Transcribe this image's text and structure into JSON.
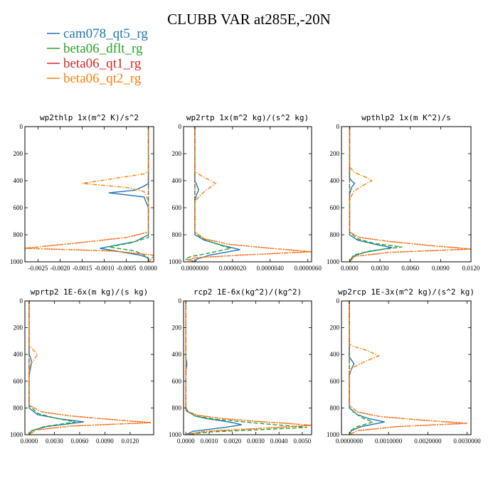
{
  "title": "CLUBB VAR at285E,-20N",
  "colors": {
    "cam078_qt5_rg": "#1f77b4",
    "beta06_dflt_rg": "#2ca02c",
    "beta06_qt1_rg": "#d62728",
    "beta06_qt2_rg": "#ff7f0e"
  },
  "legend": [
    {
      "name": "cam078_qt5_rg",
      "color": "#1f77b4",
      "style": "solid"
    },
    {
      "name": "beta06_dflt_rg",
      "color": "#2ca02c",
      "style": "dashed"
    },
    {
      "name": "beta06_qt1_rg",
      "color": "#d62728",
      "style": "dotted"
    },
    {
      "name": "beta06_qt2_rg",
      "color": "#ff7f0e",
      "style": "dashdot"
    }
  ],
  "chart_data": [
    {
      "type": "line",
      "title": "wp2thlp  1x(m^2 K)/s^2",
      "xlim": [
        -0.0028,
        0.00012
      ],
      "ylim": [
        1000,
        0
      ],
      "xticks": [
        -0.0025,
        -0.002,
        -0.0015,
        -0.001,
        -0.0005,
        0.0
      ],
      "xtick_labels": [
        "-0.0025",
        "-0.0020",
        "-0.0015",
        "-0.0010",
        "-0.0005",
        "0.0000"
      ],
      "yticks": [
        0,
        200,
        400,
        600,
        800,
        1000
      ],
      "series": [
        {
          "name": "cam078_qt5_rg",
          "x": [
            0,
            0,
            0,
            0,
            -0.0001,
            -0.0003,
            -0.0009,
            -0.0001,
            0,
            0,
            -0.0003,
            -0.0011,
            -0.0002,
            0,
            0,
            0
          ],
          "y": [
            0,
            200,
            350,
            420,
            440,
            470,
            490,
            520,
            600,
            800,
            850,
            900,
            950,
            970,
            990,
            1000
          ]
        },
        {
          "name": "beta06_dflt_rg",
          "x": [
            0,
            0,
            0,
            0,
            0,
            -0.0004,
            -0.0009,
            -0.0003,
            -0.0001,
            0,
            0
          ],
          "y": [
            0,
            300,
            600,
            780,
            820,
            860,
            890,
            920,
            950,
            980,
            1000
          ]
        },
        {
          "name": "beta06_qt1_rg",
          "x": [
            0,
            0,
            0,
            0,
            -0.0005,
            -0.0016,
            -0.0028,
            -0.0008,
            0.0001,
            0.00012,
            0
          ],
          "y": [
            0,
            300,
            600,
            780,
            820,
            860,
            900,
            920,
            950,
            960,
            1000
          ]
        },
        {
          "name": "beta06_qt2_rg",
          "x": [
            0,
            0,
            -0.0001,
            -0.0005,
            -0.0015,
            -0.0005,
            -0.0001,
            0,
            0,
            -0.0005,
            -0.0016,
            -0.0028,
            -0.0008,
            0.0001,
            0.00012,
            0
          ],
          "y": [
            0,
            330,
            350,
            370,
            420,
            450,
            480,
            550,
            780,
            820,
            860,
            900,
            920,
            950,
            960,
            1000
          ]
        }
      ]
    },
    {
      "type": "line",
      "title": "wp2rtp  1x(m^2 kg)/(s^2 kg)",
      "xlim": [
        -6e-07,
        6.2e-06
      ],
      "ylim": [
        1000,
        0
      ],
      "xticks": [
        0,
        2e-06,
        4e-06,
        6e-06
      ],
      "xtick_labels": [
        "0.0000000",
        "0.0000020",
        "0.0000040",
        "0.0000060"
      ],
      "yticks": [
        0,
        200,
        400,
        600,
        800,
        1000
      ],
      "series": [
        {
          "name": "cam078_qt5_rg",
          "x": [
            0,
            0,
            1e-07,
            2e-07,
            1e-07,
            0,
            0,
            5e-07,
            1.5e-06,
            2.4e-06,
            8e-07,
            1e-07,
            0
          ],
          "y": [
            0,
            400,
            430,
            470,
            500,
            550,
            800,
            840,
            880,
            910,
            950,
            980,
            1000
          ]
        },
        {
          "name": "beta06_dflt_rg",
          "x": [
            0,
            0,
            4e-07,
            1.2e-06,
            1.9e-06,
            6e-07,
            -2e-07,
            -5e-07,
            0
          ],
          "y": [
            0,
            780,
            830,
            870,
            900,
            940,
            960,
            980,
            1000
          ]
        },
        {
          "name": "beta06_qt1_rg",
          "x": [
            0,
            0,
            5e-07,
            1.8e-06,
            4e-06,
            6.2e-06,
            2.5e-06,
            0,
            -3e-07,
            0
          ],
          "y": [
            0,
            780,
            830,
            870,
            900,
            925,
            950,
            970,
            985,
            1000
          ]
        },
        {
          "name": "beta06_qt2_rg",
          "x": [
            0,
            0,
            3e-07,
            1.1e-06,
            6e-07,
            2e-07,
            0,
            0,
            5e-07,
            1.8e-06,
            4e-06,
            6.2e-06,
            2.5e-06,
            0,
            -3e-07,
            0
          ],
          "y": [
            0,
            330,
            360,
            420,
            470,
            520,
            560,
            780,
            830,
            870,
            900,
            925,
            950,
            970,
            985,
            1000
          ]
        }
      ]
    },
    {
      "type": "line",
      "title": "wpthlp2  1x(m K^2)/s",
      "xlim": [
        -0.0008,
        0.012
      ],
      "ylim": [
        1000,
        0
      ],
      "xticks": [
        0,
        0.003,
        0.006,
        0.009,
        0.012
      ],
      "xtick_labels": [
        "0.0000",
        "0.0030",
        "0.0060",
        "0.0090",
        "0.0120"
      ],
      "yticks": [
        0,
        200,
        400,
        600,
        800,
        1000
      ],
      "series": [
        {
          "name": "cam078_qt5_rg",
          "x": [
            0,
            0,
            0.0002,
            0.0005,
            0.0002,
            0,
            0,
            0.0008,
            0.0025,
            0.0042,
            0.0015,
            0.0003,
            0
          ],
          "y": [
            0,
            380,
            400,
            420,
            450,
            500,
            800,
            840,
            870,
            895,
            930,
            960,
            1000
          ]
        },
        {
          "name": "beta06_dflt_rg",
          "x": [
            0,
            0,
            0.0008,
            0.0025,
            0.0052,
            0.002,
            0.0004,
            0
          ],
          "y": [
            0,
            780,
            830,
            865,
            890,
            920,
            950,
            1000
          ]
        },
        {
          "name": "beta06_qt1_rg",
          "x": [
            0,
            0,
            0.001,
            0.004,
            0.008,
            0.012,
            0.004,
            0.0005,
            0
          ],
          "y": [
            0,
            780,
            820,
            850,
            880,
            905,
            930,
            960,
            1000
          ]
        },
        {
          "name": "beta06_qt2_rg",
          "x": [
            0,
            0,
            0.0005,
            0.0015,
            0.0022,
            0.0012,
            0.0004,
            0,
            0,
            0.001,
            0.004,
            0.008,
            0.012,
            0.004,
            0.0005,
            0
          ],
          "y": [
            0,
            300,
            340,
            370,
            400,
            440,
            480,
            540,
            780,
            820,
            850,
            880,
            905,
            930,
            960,
            1000
          ]
        }
      ]
    },
    {
      "type": "line",
      "title": "wprtp2  1E-6x(m kg)/(s kg)",
      "xlim": [
        -0.0005,
        0.0148
      ],
      "ylim": [
        1000,
        0
      ],
      "xticks": [
        0,
        0.003,
        0.006,
        0.009,
        0.012
      ],
      "xtick_labels": [
        "0.0000",
        "0.0030",
        "0.0060",
        "0.0090",
        "0.0120"
      ],
      "yticks": [
        0,
        200,
        400,
        600,
        800,
        1000
      ],
      "series": [
        {
          "name": "cam078_qt5_rg",
          "x": [
            0,
            0,
            0.0002,
            0.0003,
            0.0001,
            0,
            0,
            0.001,
            0.0035,
            0.0065,
            0.002,
            0.0003,
            0
          ],
          "y": [
            0,
            400,
            430,
            460,
            520,
            560,
            800,
            850,
            880,
            905,
            940,
            970,
            1000
          ]
        },
        {
          "name": "beta06_dflt_rg",
          "x": [
            0,
            0,
            0.001,
            0.003,
            0.0055,
            0.0018,
            0.0003,
            0
          ],
          "y": [
            0,
            780,
            840,
            875,
            905,
            940,
            970,
            1000
          ]
        },
        {
          "name": "beta06_qt1_rg",
          "x": [
            0,
            0,
            0.0015,
            0.005,
            0.0095,
            0.0145,
            0.005,
            0.0008,
            0
          ],
          "y": [
            0,
            780,
            830,
            860,
            885,
            910,
            935,
            965,
            1000
          ]
        },
        {
          "name": "beta06_qt2_rg",
          "x": [
            0,
            0,
            0.0004,
            0.001,
            0.0006,
            0.0001,
            0,
            0,
            0.0015,
            0.005,
            0.0095,
            0.0145,
            0.005,
            0.0008,
            0
          ],
          "y": [
            0,
            330,
            360,
            400,
            440,
            480,
            520,
            780,
            830,
            860,
            885,
            910,
            935,
            965,
            1000
          ]
        }
      ]
    },
    {
      "type": "line",
      "title": "rcp2  1E-6x(kg^2)/(kg^2)",
      "xlim": [
        -0.0001,
        0.0054
      ],
      "ylim": [
        1000,
        0
      ],
      "xticks": [
        0,
        0.001,
        0.002,
        0.003,
        0.004,
        0.005
      ],
      "xtick_labels": [
        "0.0000",
        "0.0010",
        "0.0020",
        "0.0030",
        "0.0040",
        "0.0050"
      ],
      "yticks": [
        0,
        200,
        400,
        600,
        800,
        1000
      ],
      "series": [
        {
          "name": "cam078_qt5_rg",
          "x": [
            0,
            0,
            3e-05,
            4e-05,
            0,
            0,
            0.0001,
            0.0004,
            0.0009,
            0.0015,
            0.002,
            0.0024,
            0.0017,
            0.0003,
            0
          ],
          "y": [
            0,
            430,
            450,
            480,
            520,
            800,
            830,
            860,
            880,
            895,
            910,
            925,
            945,
            975,
            1000
          ]
        },
        {
          "name": "beta06_dflt_rg",
          "x": [
            0,
            0,
            0.0004,
            0.0013,
            0.0025,
            0.0038,
            0.0052,
            0.0035,
            0.001,
            0
          ],
          "y": [
            0,
            820,
            860,
            885,
            905,
            925,
            945,
            960,
            980,
            1000
          ]
        },
        {
          "name": "beta06_qt1_rg",
          "x": [
            0,
            0,
            0.0005,
            0.0016,
            0.003,
            0.0043,
            0.0054,
            0.0035,
            0.0008,
            0
          ],
          "y": [
            0,
            820,
            855,
            880,
            900,
            915,
            930,
            950,
            975,
            1000
          ]
        },
        {
          "name": "beta06_qt2_rg",
          "x": [
            0,
            0,
            0.0005,
            0.0016,
            0.003,
            0.0043,
            0.0054,
            0.0035,
            0.0008,
            0
          ],
          "y": [
            0,
            820,
            855,
            880,
            900,
            915,
            930,
            950,
            975,
            1000
          ]
        }
      ]
    },
    {
      "type": "line",
      "title": "wp2rcp  1E-3x(m^2 kg)/(s^2 kg)",
      "xlim": [
        -2e-07,
        3.1e-06
      ],
      "ylim": [
        1000,
        0
      ],
      "xticks": [
        0,
        1e-06,
        2e-06,
        3e-06
      ],
      "xtick_labels": [
        "0.0000000",
        "0.0010000",
        "0.0020000",
        "0.0030000"
      ],
      "yticks": [
        0,
        200,
        400,
        600,
        800,
        1000
      ],
      "series": [
        {
          "name": "cam078_qt5_rg",
          "x": [
            0,
            0,
            5e-08,
            1.2e-07,
            5e-08,
            0,
            0,
            2e-07,
            5e-07,
            9e-07,
            3e-07,
            5e-08,
            0
          ],
          "y": [
            0,
            420,
            440,
            470,
            510,
            560,
            800,
            850,
            880,
            905,
            940,
            970,
            1000
          ]
        },
        {
          "name": "beta06_dflt_rg",
          "x": [
            0,
            0,
            1e-07,
            3e-07,
            6e-07,
            2e-07,
            3e-08,
            0
          ],
          "y": [
            0,
            780,
            830,
            870,
            905,
            940,
            970,
            1000
          ]
        },
        {
          "name": "beta06_qt1_rg",
          "x": [
            0,
            0,
            2e-07,
            8e-07,
            1.8e-06,
            3e-06,
            1.2e-06,
            2e-07,
            0
          ],
          "y": [
            0,
            780,
            830,
            865,
            890,
            915,
            940,
            970,
            1000
          ]
        },
        {
          "name": "beta06_qt2_rg",
          "x": [
            0,
            0,
            1e-07,
            4.5e-07,
            7.5e-07,
            3.5e-07,
            8e-08,
            0,
            0,
            2e-07,
            8e-07,
            1.8e-06,
            3e-06,
            1.2e-06,
            2e-07,
            0
          ],
          "y": [
            0,
            320,
            340,
            370,
            410,
            460,
            500,
            540,
            780,
            830,
            865,
            890,
            915,
            940,
            970,
            1000
          ]
        }
      ]
    }
  ]
}
